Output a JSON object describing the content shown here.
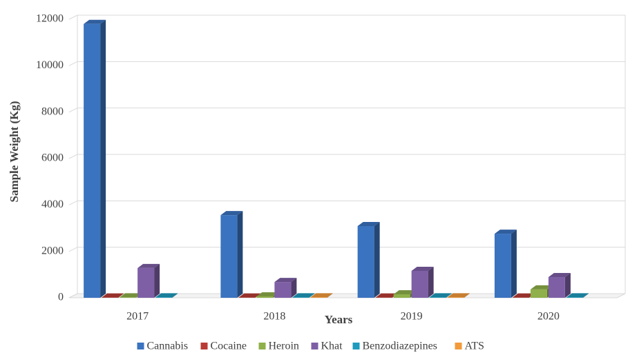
{
  "chart_data": {
    "type": "bar3d",
    "y_label": "Sample Weight (Kg)",
    "x_label": "Years",
    "categories": [
      "2017",
      "2018",
      "2019",
      "2020"
    ],
    "series": [
      {
        "name": "Cannabis",
        "color": "#3a73bf",
        "values": [
          11800,
          3560,
          3090,
          2760
        ]
      },
      {
        "name": "Cocaine",
        "color": "#b83c35",
        "values": [
          10,
          10,
          10,
          10
        ]
      },
      {
        "name": "Heroin",
        "color": "#8fb04a",
        "values": [
          20,
          60,
          150,
          360
        ]
      },
      {
        "name": "Khat",
        "color": "#7e5fa6",
        "values": [
          1280,
          680,
          1160,
          890
        ]
      },
      {
        "name": "Benzodiazepines",
        "color": "#1f9bbd",
        "values": [
          20,
          20,
          20,
          20
        ]
      },
      {
        "name": "ATS",
        "color": "#f39a3b",
        "values": [
          null,
          20,
          20,
          null
        ]
      }
    ],
    "ylim": [
      0,
      12000
    ],
    "yticks": [
      0,
      2000,
      4000,
      6000,
      8000,
      10000,
      12000
    ],
    "grid": true,
    "legend": "bottom"
  }
}
